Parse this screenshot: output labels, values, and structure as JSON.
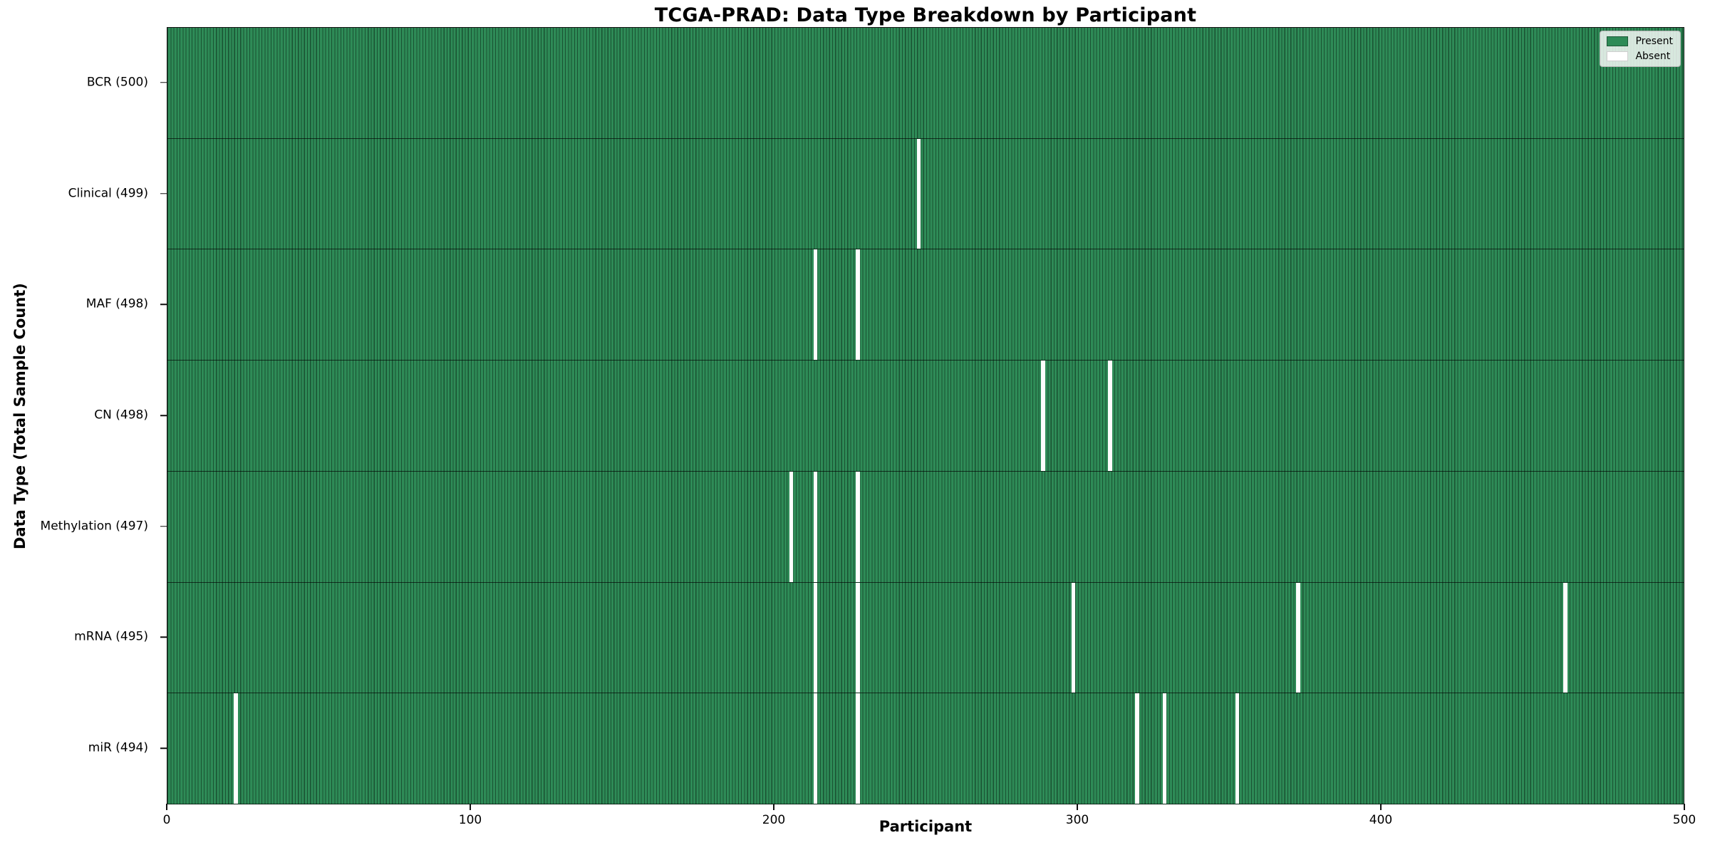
{
  "chart_data": {
    "type": "heatmap",
    "title": "TCGA-PRAD: Data Type Breakdown by Participant",
    "xlabel": "Participant",
    "ylabel": "Data Type (Total Sample Count)",
    "xlim": [
      0,
      500
    ],
    "x_ticks": [
      0,
      100,
      200,
      300,
      400,
      500
    ],
    "n_participants": 500,
    "grid": false,
    "legend_position": "upper right",
    "legend": [
      {
        "label": "Present",
        "color": "#2e8b57"
      },
      {
        "label": "Absent",
        "color": "#ffffff"
      }
    ],
    "colors": {
      "present": "#2e8b57",
      "absent": "#ffffff",
      "cell_edge": "#1d5a38",
      "spine": "#111111"
    },
    "rows": [
      {
        "label": "BCR (500)",
        "data_type": "BCR",
        "total": 500,
        "absent_participants": []
      },
      {
        "label": "Clinical (499)",
        "data_type": "Clinical",
        "total": 499,
        "absent_participants": [
          247
        ]
      },
      {
        "label": "MAF (498)",
        "data_type": "MAF",
        "total": 498,
        "absent_participants": [
          213,
          227
        ]
      },
      {
        "label": "CN (498)",
        "data_type": "CN",
        "total": 498,
        "absent_participants": [
          288,
          310
        ]
      },
      {
        "label": "Methylation (497)",
        "data_type": "Methylation",
        "total": 497,
        "absent_participants": [
          205,
          213,
          227
        ]
      },
      {
        "label": "mRNA (495)",
        "data_type": "mRNA",
        "total": 495,
        "absent_participants": [
          213,
          227,
          298,
          372,
          460
        ]
      },
      {
        "label": "miR (494)",
        "data_type": "miR",
        "total": 494,
        "absent_participants": [
          22,
          213,
          227,
          319,
          328,
          352
        ]
      }
    ]
  }
}
